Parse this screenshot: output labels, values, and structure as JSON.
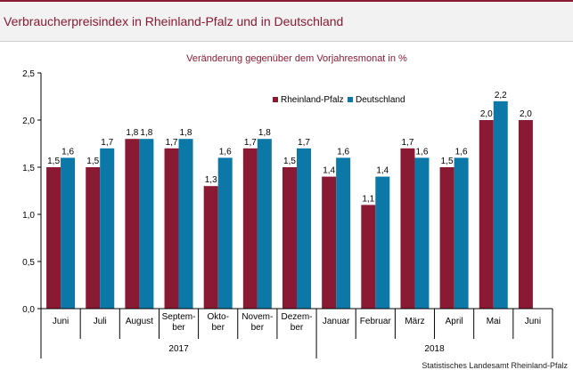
{
  "title": "Verbraucherpreisindex in Rheinland-Pfalz und in Deutschland",
  "source": "Statistisches Landesamt Rheinland-Pfalz",
  "colors": {
    "rlp": "#8a1a33",
    "de": "#0b78a8",
    "title": "#8a1a33",
    "panel_bg": "#f2f2f2"
  },
  "chart_data": {
    "type": "bar",
    "subtitle": "Veränderung gegenüber dem Vorjahresmonat in %",
    "categories": [
      [
        "Juni"
      ],
      [
        "Juli"
      ],
      [
        "August"
      ],
      [
        "Septem-",
        "ber"
      ],
      [
        "Okto-",
        "ber"
      ],
      [
        "Novem-",
        "ber"
      ],
      [
        "Dezem-",
        "ber"
      ],
      [
        "Januar"
      ],
      [
        "Februar"
      ],
      [
        "März"
      ],
      [
        "April"
      ],
      [
        "Mai"
      ],
      [
        "Juni"
      ]
    ],
    "year_groups": [
      {
        "label": "2017",
        "start": 0,
        "end": 6
      },
      {
        "label": "2018",
        "start": 7,
        "end": 12
      }
    ],
    "series": [
      {
        "name": "Rheinland-Pfalz",
        "values": [
          1.5,
          1.5,
          1.8,
          1.7,
          1.3,
          1.7,
          1.5,
          1.4,
          1.1,
          1.7,
          1.5,
          2.0,
          2.0
        ],
        "labels": [
          "1,5",
          "1,5",
          "1,8",
          "1,7",
          "1,3",
          "1,7",
          "1,5",
          "1,4",
          "1,1",
          "1,7",
          "1,5",
          "2,0",
          "2,0"
        ]
      },
      {
        "name": "Deutschland",
        "values": [
          1.6,
          1.7,
          1.8,
          1.8,
          1.6,
          1.8,
          1.7,
          1.6,
          1.4,
          1.6,
          1.6,
          2.2,
          null
        ],
        "labels": [
          "1,6",
          "1,7",
          "1,8",
          "1,8",
          "1,6",
          "1,8",
          "1,7",
          "1,6",
          "1,4",
          "1,6",
          "1,6",
          "2,2",
          ""
        ]
      }
    ],
    "yticks": [
      0,
      0.5,
      1.0,
      1.5,
      2.0,
      2.5
    ],
    "ytick_labels": [
      "0,0",
      "0,5",
      "1,0",
      "1,5",
      "2,0",
      "2,5"
    ],
    "ylim": [
      0,
      2.5
    ],
    "grid": false,
    "legend_position": "top-right"
  }
}
